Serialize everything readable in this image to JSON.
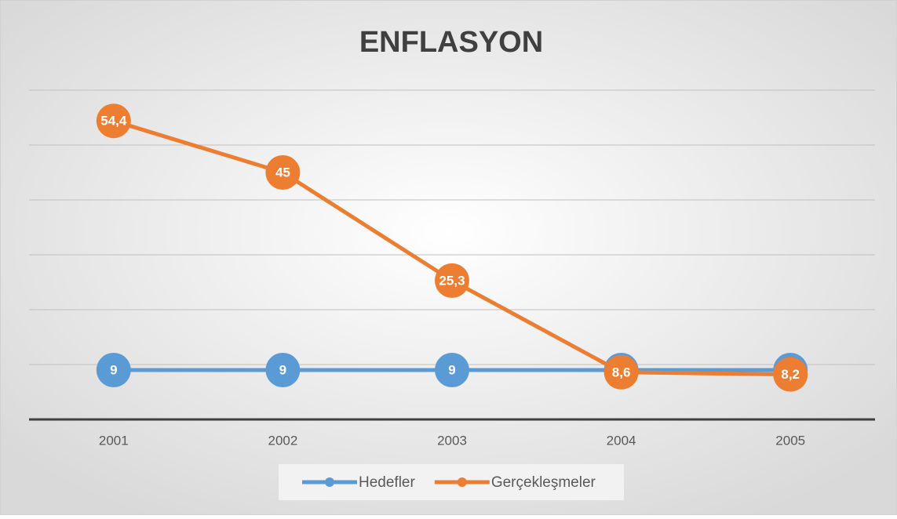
{
  "chart_data": {
    "type": "line",
    "title": "ENFLASYON",
    "categories": [
      "2001",
      "2002",
      "2003",
      "2004",
      "2005"
    ],
    "series": [
      {
        "name": "Hedefler",
        "color": "#5b9bd5",
        "values": [
          9,
          9,
          9,
          9,
          9
        ]
      },
      {
        "name": "Gerçekleşmeler",
        "color": "#ed7d31",
        "values": [
          54.4,
          45,
          25.3,
          8.6,
          8.2
        ],
        "value_labels": [
          "54,4",
          "45",
          "25,3",
          "8,6",
          "8,2"
        ]
      }
    ],
    "ylim": [
      0,
      60
    ],
    "yticks": [
      0,
      10,
      20,
      30,
      40,
      50,
      60
    ],
    "grid": true,
    "legend": "bottom"
  }
}
